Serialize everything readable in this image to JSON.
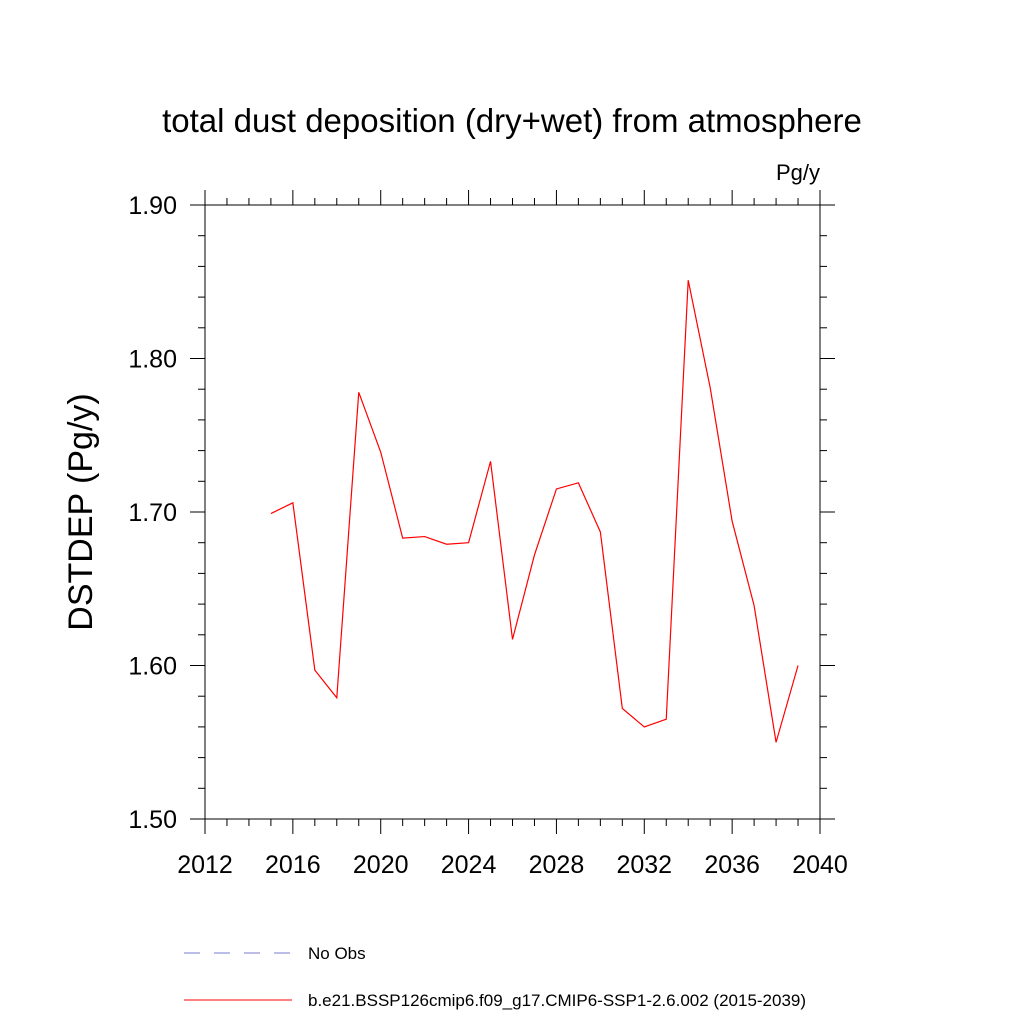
{
  "chart_data": {
    "type": "line",
    "title": "total dust deposition (dry+wet) from atmosphere",
    "units_label": "Pg/y",
    "xlabel": "",
    "ylabel": "DSTDEP  (Pg/y)",
    "xlim": [
      2012,
      2040
    ],
    "ylim": [
      1.5,
      1.9
    ],
    "x_ticks": [
      2012,
      2016,
      2020,
      2024,
      2028,
      2032,
      2036,
      2040
    ],
    "y_ticks": [
      1.5,
      1.6,
      1.7,
      1.8,
      1.9
    ],
    "y_tick_labels": [
      "1.50",
      "1.60",
      "1.70",
      "1.80",
      "1.90"
    ],
    "grid": false,
    "legend_position": "bottom",
    "series": [
      {
        "name": "b.e21.BSSP126cmip6.f09_g17.CMIP6-SSP1-2.6.002 (2015-2039)",
        "color": "#ff0000",
        "style": "solid",
        "x": [
          2015,
          2016,
          2017,
          2018,
          2019,
          2020,
          2021,
          2022,
          2023,
          2024,
          2025,
          2026,
          2027,
          2028,
          2029,
          2030,
          2031,
          2032,
          2033,
          2034,
          2035,
          2036,
          2037,
          2038,
          2039
        ],
        "y": [
          1.699,
          1.706,
          1.597,
          1.579,
          1.778,
          1.739,
          1.683,
          1.684,
          1.679,
          1.68,
          1.733,
          1.617,
          1.672,
          1.715,
          1.719,
          1.687,
          1.572,
          1.56,
          1.565,
          1.851,
          1.781,
          1.694,
          1.639,
          1.55,
          1.6
        ]
      },
      {
        "name": "No Obs",
        "color": "#7b7bd4",
        "style": "dashed",
        "x": [],
        "y": []
      }
    ]
  }
}
